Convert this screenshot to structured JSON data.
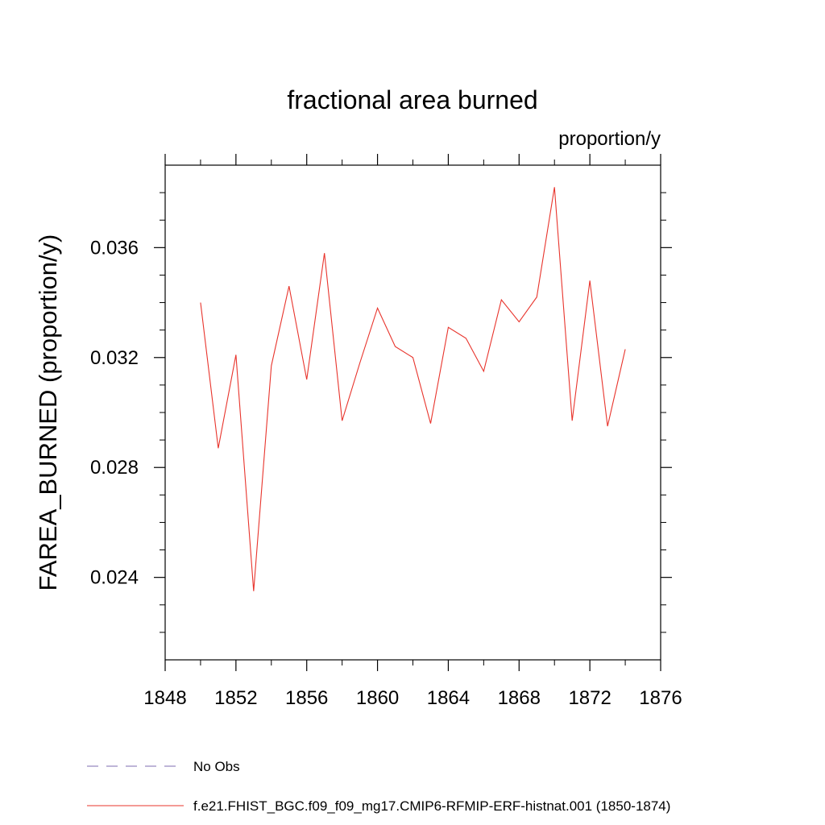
{
  "chart_data": {
    "type": "line",
    "title": "fractional area burned",
    "units": "proportion/y",
    "ylabel": "FAREA_BURNED  (proportion/y)",
    "xlabel": "",
    "xlim": [
      1848,
      1876
    ],
    "ylim": [
      0.021,
      0.039
    ],
    "xticks": [
      1848,
      1852,
      1856,
      1860,
      1864,
      1868,
      1872,
      1876
    ],
    "xtick_labels": [
      "1848",
      "1852",
      "1856",
      "1860",
      "1864",
      "1868",
      "1872",
      "1876"
    ],
    "yticks": [
      0.024,
      0.028,
      0.032,
      0.036
    ],
    "ytick_labels": [
      "0.024",
      "0.028",
      "0.032",
      "0.036"
    ],
    "x_minor_step": 2,
    "y_minor_step": 0.001,
    "grid": false,
    "legend_placement": "bottom",
    "legend": [
      {
        "label": "No Obs",
        "color": "#7d6bb0",
        "style": "dashed"
      },
      {
        "label": "f.e21.FHIST_BGC.f09_f09_mg17.CMIP6-RFMIP-ERF-histnat.001 (1850-1874)",
        "color": "#e8342c",
        "style": "solid"
      }
    ],
    "series": [
      {
        "name": "f.e21.FHIST_BGC.f09_f09_mg17.CMIP6-RFMIP-ERF-histnat.001 (1850-1874)",
        "color": "#e8342c",
        "x": [
          1850,
          1851,
          1852,
          1853,
          1854,
          1855,
          1856,
          1857,
          1858,
          1859,
          1860,
          1861,
          1862,
          1863,
          1864,
          1865,
          1866,
          1867,
          1868,
          1869,
          1870,
          1871,
          1872,
          1873,
          1874
        ],
        "values": [
          0.034,
          0.0287,
          0.0321,
          0.0235,
          0.0317,
          0.0346,
          0.0312,
          0.0358,
          0.0297,
          0.0318,
          0.0338,
          0.0324,
          0.032,
          0.0296,
          0.0331,
          0.0327,
          0.0315,
          0.0341,
          0.0333,
          0.0342,
          0.0382,
          0.0297,
          0.0348,
          0.0295,
          0.0323
        ]
      }
    ]
  }
}
